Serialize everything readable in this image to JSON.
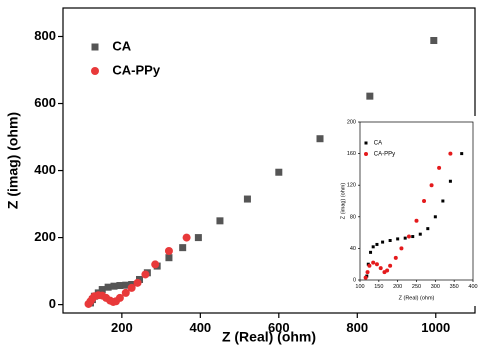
{
  "chart_data": [
    {
      "type": "scatter",
      "title_x": "Z (Real) (ohm)",
      "title_y": "Z (imag) (ohm)",
      "xlim": [
        50,
        1100
      ],
      "ylim": [
        -25,
        885
      ],
      "xticks": [
        200,
        400,
        600,
        800,
        1000
      ],
      "yticks": [
        0,
        200,
        400,
        600,
        800
      ],
      "legend": "upper left",
      "series": [
        {
          "name": "CA",
          "color": "#555555",
          "marker": "square",
          "x": [
            120,
            125,
            130,
            140,
            150,
            165,
            180,
            195,
            210,
            225,
            245,
            265,
            290,
            320,
            355,
            395,
            450,
            520,
            600,
            705,
            832,
            995
          ],
          "values": [
            5,
            15,
            25,
            35,
            45,
            52,
            55,
            57,
            58,
            60,
            75,
            95,
            115,
            140,
            170,
            200,
            250,
            315,
            395,
            495,
            622,
            788
          ]
        },
        {
          "name": "CA-PPy",
          "color": "#e8393a",
          "marker": "circle",
          "x": [
            115,
            120,
            125,
            130,
            140,
            150,
            160,
            170,
            178,
            185,
            195,
            210,
            225,
            240,
            260,
            285,
            320,
            365
          ],
          "values": [
            2,
            10,
            18,
            25,
            28,
            27,
            20,
            12,
            8,
            10,
            20,
            35,
            50,
            65,
            90,
            120,
            160,
            200
          ]
        }
      ]
    },
    {
      "type": "scatter",
      "title_x": "Z (Real) (ohm)",
      "title_y": "Z (imag) (ohm)",
      "xlim": [
        100,
        400
      ],
      "ylim": [
        0,
        200
      ],
      "xticks": [
        100,
        150,
        200,
        250,
        300,
        350,
        400
      ],
      "yticks": [
        0,
        40,
        80,
        120,
        160,
        200
      ],
      "legend": "upper left",
      "series": [
        {
          "name": "CA",
          "color": "#000000",
          "marker": "square",
          "x": [
            118,
            122,
            128,
            135,
            145,
            160,
            180,
            200,
            220,
            240,
            260,
            280,
            300,
            320,
            340,
            370
          ],
          "values": [
            5,
            20,
            35,
            42,
            45,
            48,
            50,
            52,
            53,
            55,
            58,
            65,
            80,
            100,
            125,
            160
          ]
        },
        {
          "name": "CA-PPy",
          "color": "#e41a1c",
          "marker": "circle",
          "x": [
            115,
            120,
            125,
            135,
            145,
            155,
            165,
            172,
            180,
            195,
            210,
            230,
            250,
            270,
            290,
            310,
            340
          ],
          "values": [
            3,
            10,
            18,
            22,
            20,
            15,
            10,
            12,
            18,
            28,
            40,
            55,
            75,
            100,
            120,
            142,
            160
          ]
        }
      ]
    }
  ]
}
